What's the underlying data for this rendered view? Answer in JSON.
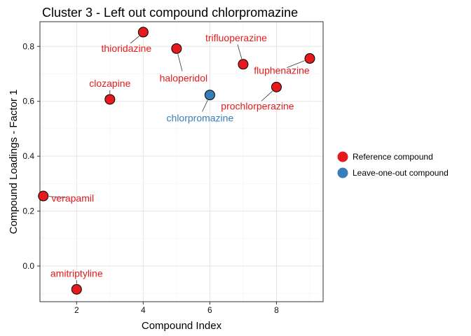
{
  "chart_data": {
    "type": "scatter",
    "title": "Cluster 3 - Left out compound chlorpromazine",
    "xlabel": "Compound Index",
    "ylabel": "Compound Loadings - Factor 1",
    "xlim": [
      0.9,
      9.4
    ],
    "ylim": [
      -0.13,
      0.89
    ],
    "xticks": [
      2,
      4,
      6,
      8
    ],
    "yticks": [
      0.0,
      0.2,
      0.4,
      0.6,
      0.8
    ],
    "ytick_labels": [
      "0.0",
      "0.2",
      "0.4",
      "0.6",
      "0.8"
    ],
    "grid": true,
    "legend_position": "right",
    "series": [
      {
        "name": "Reference compound",
        "color": "#e41a1c",
        "points": [
          {
            "x": 1,
            "y": 0.255,
            "label": "verapamil"
          },
          {
            "x": 2,
            "y": -0.085,
            "label": "amitriptyline"
          },
          {
            "x": 3,
            "y": 0.607,
            "label": "clozapine"
          },
          {
            "x": 4,
            "y": 0.852,
            "label": "thioridazine"
          },
          {
            "x": 5,
            "y": 0.792,
            "label": "haloperidol"
          },
          {
            "x": 7,
            "y": 0.735,
            "label": "trifluoperazine"
          },
          {
            "x": 8,
            "y": 0.652,
            "label": "prochlorperazine"
          },
          {
            "x": 9,
            "y": 0.756,
            "label": "fluphenazine"
          }
        ]
      },
      {
        "name": "Leave-one-out compound",
        "color": "#377eb8",
        "points": [
          {
            "x": 6,
            "y": 0.623,
            "label": "chlorpromazine"
          }
        ]
      }
    ]
  }
}
